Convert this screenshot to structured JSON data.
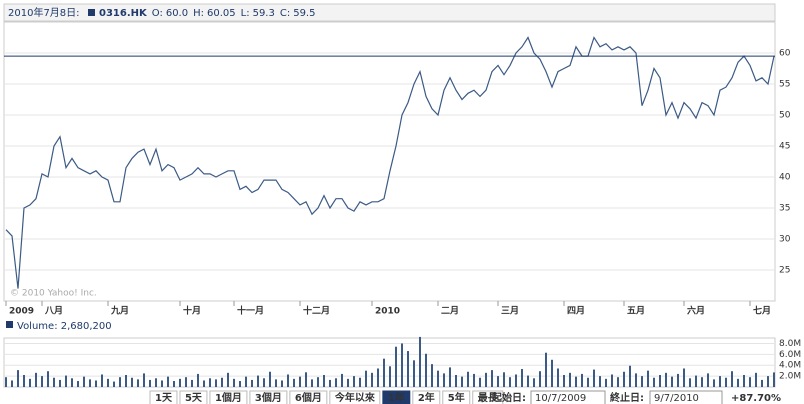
{
  "header": {
    "date": "2010年7月8日:",
    "symbol": "0316.HK",
    "fields": [
      {
        "label": "O:",
        "value": "60.0"
      },
      {
        "label": "H:",
        "value": "60.05"
      },
      {
        "label": "L:",
        "value": "59.3"
      },
      {
        "label": "C:",
        "value": "59.5"
      }
    ]
  },
  "chart_data": [
    {
      "type": "line",
      "watermark": "© 2010 Yahoo! Inc.",
      "categories": [
        "2009",
        null,
        null,
        null,
        null,
        null,
        "八月",
        null,
        null,
        null,
        null,
        null,
        null,
        null,
        null,
        null,
        null,
        "九月",
        null,
        null,
        null,
        null,
        null,
        null,
        null,
        null,
        null,
        null,
        null,
        "十月",
        null,
        null,
        null,
        null,
        null,
        null,
        null,
        null,
        "十一月",
        null,
        null,
        null,
        null,
        null,
        null,
        null,
        null,
        null,
        null,
        "十二月",
        null,
        null,
        null,
        null,
        null,
        null,
        null,
        null,
        null,
        null,
        null,
        "2010",
        null,
        null,
        null,
        null,
        null,
        null,
        null,
        null,
        null,
        null,
        "二月",
        null,
        null,
        null,
        null,
        null,
        null,
        null,
        null,
        null,
        "三月",
        null,
        null,
        null,
        null,
        null,
        null,
        null,
        null,
        null,
        null,
        "四月",
        null,
        null,
        null,
        null,
        null,
        null,
        null,
        null,
        null,
        "五月",
        null,
        null,
        null,
        null,
        null,
        null,
        null,
        null,
        null,
        "六月",
        null,
        null,
        null,
        null,
        null,
        null,
        null,
        null,
        null,
        null,
        "七月",
        null,
        null,
        null,
        null
      ],
      "series": [
        {
          "color": "#3b5a85",
          "values": [
            31.5,
            30.5,
            22,
            35,
            35.5,
            36.5,
            40.5,
            40,
            45,
            46.5,
            41.5,
            43,
            41.5,
            41,
            40.5,
            41,
            40,
            39.5,
            36,
            36,
            41.5,
            43,
            44,
            44.5,
            42,
            44.5,
            41,
            42,
            41.5,
            39.5,
            40,
            40.5,
            41.5,
            40.5,
            40.5,
            40,
            40.5,
            41,
            41,
            38,
            38.5,
            37.5,
            38,
            39.5,
            39.5,
            39.5,
            38,
            37.5,
            36.5,
            35.5,
            36,
            34,
            35,
            37,
            35,
            36.5,
            36.5,
            35,
            34.5,
            36,
            35.5,
            36,
            36,
            36.5,
            41,
            45,
            50,
            52,
            55,
            57,
            53,
            51,
            50,
            54,
            56,
            54,
            52.5,
            53.5,
            54,
            53,
            54,
            57,
            58,
            56.5,
            58,
            60,
            61,
            62.5,
            60,
            59,
            57,
            54.5,
            57,
            57.5,
            58,
            61,
            59.5,
            59.5,
            62.5,
            61,
            61.5,
            60.5,
            61,
            60.5,
            61,
            60,
            51.5,
            54,
            57.5,
            56,
            50,
            52,
            49.5,
            52,
            51,
            49.5,
            52,
            51.5,
            50,
            54,
            54.5,
            56,
            58.5,
            59.5,
            58,
            55.5,
            56,
            55,
            59.5
          ]
        }
      ],
      "reference_line": 59.5,
      "ylim": [
        20,
        65
      ],
      "yticks": [
        25,
        30,
        35,
        40,
        45,
        50,
        55,
        60
      ],
      "grid": true
    },
    {
      "type": "bar",
      "title": "Volume: 2,680,200",
      "color": "#3b5a85",
      "values": [
        1800000,
        1200000,
        3100000,
        2200000,
        1500000,
        2600000,
        2000000,
        2900000,
        1700000,
        1300000,
        2100000,
        1600000,
        1100000,
        1900000,
        1400000,
        1200000,
        2300000,
        1500000,
        1000000,
        1800000,
        2200000,
        1700000,
        1400000,
        2500000,
        1300000,
        1600000,
        1200000,
        1900000,
        1100000,
        1500000,
        1800000,
        1300000,
        2400000,
        1200000,
        1600000,
        1400000,
        1700000,
        2600000,
        1500000,
        1100000,
        1900000,
        1300000,
        2100000,
        1600000,
        2800000,
        1400000,
        1200000,
        2300000,
        1500000,
        1900000,
        2700000,
        1400000,
        1800000,
        2200000,
        1300000,
        1600000,
        2400000,
        1500000,
        2000000,
        1700000,
        3000000,
        2600000,
        3400000,
        5200000,
        3800000,
        7400000,
        8000000,
        6600000,
        4900000,
        9200000,
        6100000,
        4200000,
        3000000,
        2500000,
        3600000,
        2200000,
        1900000,
        2800000,
        2400000,
        1700000,
        2600000,
        3100000,
        2000000,
        2700000,
        1800000,
        2300000,
        3300000,
        2100000,
        1600000,
        2900000,
        6300000,
        5000000,
        3400000,
        2200000,
        2600000,
        1900000,
        2400000,
        1700000,
        3200000,
        2000000,
        1500000,
        2300000,
        1800000,
        2800000,
        3900000,
        2500000,
        2000000,
        3000000,
        1700000,
        2200000,
        2600000,
        1900000,
        2400000,
        3400000,
        1600000,
        2100000,
        1800000,
        2500000,
        1400000,
        2000000,
        1700000,
        2900000,
        1500000,
        2200000,
        1800000,
        2600000,
        1300000,
        2000000,
        2680200
      ],
      "ylim": [
        0,
        9000000
      ],
      "yticks": [
        {
          "value": 2000000,
          "label": "2.0M"
        },
        {
          "value": 4000000,
          "label": "4.0M"
        },
        {
          "value": 6000000,
          "label": "6.0M"
        },
        {
          "value": 8000000,
          "label": "8.0M"
        }
      ],
      "grid": true
    }
  ],
  "controls": {
    "ranges": [
      "1天",
      "5天",
      "1個月",
      "3個月",
      "6個月",
      "今年以來",
      "1年",
      "2年",
      "5年",
      "最長"
    ],
    "selected": 6,
    "start_label": "起始日:",
    "start_date": "10/7/2009",
    "end_label": "終止日:",
    "end_date": "9/7/2010",
    "change": "+87.70%"
  }
}
